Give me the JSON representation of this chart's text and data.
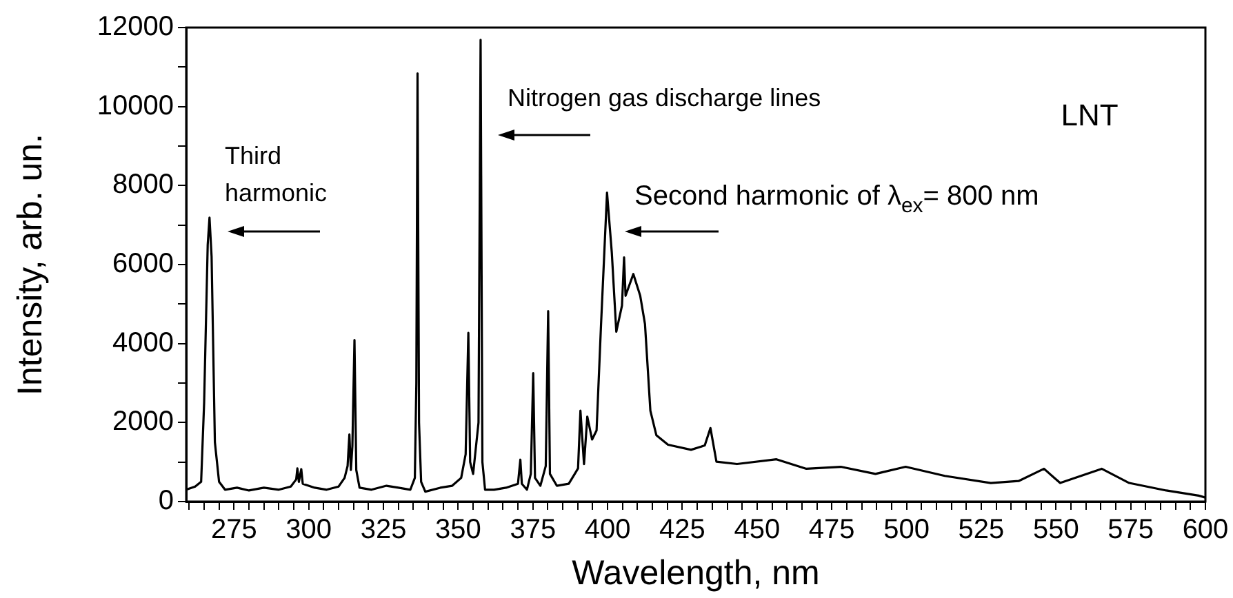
{
  "chart_data": {
    "type": "line",
    "xlabel": "Wavelength, nm",
    "ylabel": "Intensity, arb. un.",
    "annotations": [
      "Third\nharmonic",
      "Nitrogen gas discharge lines",
      "Second harmonic of λ$_{ex}$= 800 nm",
      "LNT"
    ],
    "x": [
      259,
      262,
      264,
      265,
      266.2,
      266.8,
      267.5,
      268.6,
      270,
      272,
      276,
      280,
      285,
      290,
      294,
      295.8,
      296.2,
      296.7,
      297.5,
      298,
      302,
      306,
      310,
      312,
      313,
      313.6,
      314.1,
      314.6,
      315.3,
      315.9,
      317,
      321,
      326,
      330,
      334,
      335.5,
      336,
      336.4,
      336.9,
      337.6,
      339,
      344,
      348,
      351,
      352.5,
      353.4,
      354,
      355,
      356.8,
      357.5,
      358.1,
      359,
      362,
      366,
      370,
      370.8,
      371.3,
      373,
      374.3,
      375.1,
      375.7,
      377.5,
      379.3,
      380.1,
      380.7,
      383,
      387,
      389,
      390.1,
      390.9,
      392.1,
      393.2,
      394.8,
      396.3,
      397.8,
      399.8,
      401.4,
      402.9,
      404.8,
      405.5,
      406,
      408.6,
      410.9,
      412.5,
      414.3,
      416.3,
      420.2,
      427.9,
      432.5,
      434.4,
      436.4,
      443.3,
      456.5,
      466.5,
      478,
      489.6,
      499.7,
      512.8,
      528.2,
      537.5,
      546,
      551.4,
      565.3,
      574.5,
      586.9,
      597.7,
      600
    ],
    "series": [
      {
        "color": "#000000",
        "values": [
          300,
          380,
          500,
          2500,
          6500,
          7190,
          6200,
          1500,
          500,
          300,
          350,
          280,
          350,
          300,
          380,
          560,
          840,
          500,
          820,
          450,
          350,
          300,
          380,
          600,
          900,
          1700,
          800,
          1400,
          4090,
          800,
          350,
          300,
          400,
          350,
          300,
          600,
          3000,
          10840,
          2000,
          500,
          250,
          350,
          400,
          600,
          1200,
          4270,
          1000,
          700,
          2000,
          11690,
          1000,
          300,
          300,
          350,
          450,
          1060,
          450,
          300,
          700,
          3250,
          600,
          400,
          900,
          4820,
          700,
          400,
          450,
          700,
          840,
          2300,
          950,
          2150,
          1570,
          1800,
          4490,
          7820,
          6300,
          4300,
          4960,
          6180,
          5210,
          5760,
          5210,
          4490,
          2300,
          1680,
          1440,
          1310,
          1420,
          1860,
          1010,
          950,
          1070,
          830,
          880,
          700,
          880,
          650,
          470,
          520,
          830,
          470,
          830,
          470,
          280,
          150,
          100
        ]
      }
    ],
    "xlim": [
      259,
      600
    ],
    "ylim": [
      0,
      12000
    ],
    "xticks": [
      {
        "value": 260,
        "label": null
      },
      {
        "value": 265,
        "label": null
      },
      {
        "value": 270,
        "label": null
      },
      275,
      {
        "value": 280,
        "label": null
      },
      {
        "value": 285,
        "label": null
      },
      {
        "value": 290,
        "label": null
      },
      {
        "value": 295,
        "label": null
      },
      300,
      {
        "value": 305,
        "label": null
      },
      {
        "value": 310,
        "label": null
      },
      {
        "value": 315,
        "label": null
      },
      {
        "value": 320,
        "label": null
      },
      325,
      {
        "value": 330,
        "label": null
      },
      {
        "value": 335,
        "label": null
      },
      {
        "value": 340,
        "label": null
      },
      {
        "value": 345,
        "label": null
      },
      350,
      {
        "value": 355,
        "label": null
      },
      {
        "value": 360,
        "label": null
      },
      {
        "value": 365,
        "label": null
      },
      {
        "value": 370,
        "label": null
      },
      375,
      {
        "value": 380,
        "label": null
      },
      {
        "value": 385,
        "label": null
      },
      {
        "value": 390,
        "label": null
      },
      {
        "value": 395,
        "label": null
      },
      400,
      {
        "value": 405,
        "label": null
      },
      {
        "value": 410,
        "label": null
      },
      {
        "value": 415,
        "label": null
      },
      {
        "value": 420,
        "label": null
      },
      425,
      {
        "value": 430,
        "label": null
      },
      {
        "value": 435,
        "label": null
      },
      {
        "value": 440,
        "label": null
      },
      {
        "value": 445,
        "label": null
      },
      450,
      {
        "value": 455,
        "label": null
      },
      {
        "value": 460,
        "label": null
      },
      {
        "value": 465,
        "label": null
      },
      {
        "value": 470,
        "label": null
      },
      475,
      {
        "value": 480,
        "label": null
      },
      {
        "value": 485,
        "label": null
      },
      {
        "value": 490,
        "label": null
      },
      {
        "value": 495,
        "label": null
      },
      500,
      {
        "value": 505,
        "label": null
      },
      {
        "value": 510,
        "label": null
      },
      {
        "value": 515,
        "label": null
      },
      {
        "value": 520,
        "label": null
      },
      525,
      {
        "value": 530,
        "label": null
      },
      {
        "value": 535,
        "label": null
      },
      {
        "value": 540,
        "label": null
      },
      {
        "value": 545,
        "label": null
      },
      550,
      {
        "value": 555,
        "label": null
      },
      {
        "value": 560,
        "label": null
      },
      {
        "value": 565,
        "label": null
      },
      {
        "value": 570,
        "label": null
      },
      575,
      {
        "value": 580,
        "label": null
      },
      {
        "value": 585,
        "label": null
      },
      {
        "value": 590,
        "label": null
      },
      {
        "value": 595,
        "label": null
      },
      600
    ],
    "yticks": [
      0,
      {
        "value": 1000,
        "label": null
      },
      2000,
      {
        "value": 3000,
        "label": null
      },
      4000,
      {
        "value": 5000,
        "label": null
      },
      6000,
      {
        "value": 7000,
        "label": null
      },
      8000,
      {
        "value": 9000,
        "label": null
      },
      10000,
      {
        "value": 11000,
        "label": null
      },
      12000
    ]
  }
}
